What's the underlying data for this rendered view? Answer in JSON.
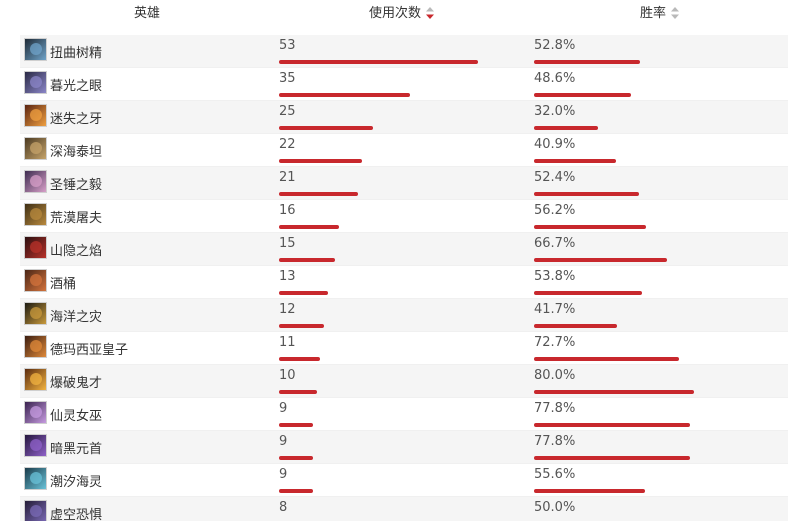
{
  "header": {
    "hero": "英雄",
    "usage": "使用次数",
    "winrate": "胜率"
  },
  "colors": {
    "bar": "#c8282d",
    "sort_active": "#c8282d",
    "sort_inactive": "#b9b9b9"
  },
  "heroes": [
    {
      "name": "扭曲树精",
      "usage": "53",
      "winrate": "52.8%",
      "winrate_value": 52.8,
      "avatar_colors": [
        "#1f2a36",
        "#6fa3c9"
      ]
    },
    {
      "name": "暮光之眼",
      "usage": "35",
      "winrate": "48.6%",
      "winrate_value": 48.6,
      "avatar_colors": [
        "#2a2a45",
        "#8b86c8"
      ]
    },
    {
      "name": "迷失之牙",
      "usage": "25",
      "winrate": "32.0%",
      "winrate_value": 32.0,
      "avatar_colors": [
        "#5a2310",
        "#f0a040"
      ]
    },
    {
      "name": "深海泰坦",
      "usage": "22",
      "winrate": "40.9%",
      "winrate_value": 40.9,
      "avatar_colors": [
        "#4b3a22",
        "#c5a36a"
      ]
    },
    {
      "name": "圣锤之毅",
      "usage": "21",
      "winrate": "52.4%",
      "winrate_value": 52.4,
      "avatar_colors": [
        "#3d2c4f",
        "#d79fc8"
      ]
    },
    {
      "name": "荒漠屠夫",
      "usage": "16",
      "winrate": "56.2%",
      "winrate_value": 56.2,
      "avatar_colors": [
        "#3f3015",
        "#b8893e"
      ]
    },
    {
      "name": "山隐之焰",
      "usage": "15",
      "winrate": "66.7%",
      "winrate_value": 66.7,
      "avatar_colors": [
        "#2b0f10",
        "#b8322a"
      ]
    },
    {
      "name": "酒桶",
      "usage": "13",
      "winrate": "53.8%",
      "winrate_value": 53.8,
      "avatar_colors": [
        "#4a2616",
        "#d3733c"
      ]
    },
    {
      "name": "海洋之灾",
      "usage": "12",
      "winrate": "41.7%",
      "winrate_value": 41.7,
      "avatar_colors": [
        "#1c1a12",
        "#c99a3c"
      ]
    },
    {
      "name": "德玛西亚皇子",
      "usage": "11",
      "winrate": "72.7%",
      "winrate_value": 72.7,
      "avatar_colors": [
        "#3b1d10",
        "#e08a3a"
      ]
    },
    {
      "name": "爆破鬼才",
      "usage": "10",
      "winrate": "80.0%",
      "winrate_value": 80.0,
      "avatar_colors": [
        "#5a2a0e",
        "#f2b340"
      ]
    },
    {
      "name": "仙灵女巫",
      "usage": "9",
      "winrate": "77.8%",
      "winrate_value": 77.8,
      "avatar_colors": [
        "#3a2350",
        "#c69be0"
      ]
    },
    {
      "name": "暗黑元首",
      "usage": "9",
      "winrate": "77.8%",
      "winrate_value": 77.8,
      "avatar_colors": [
        "#24163d",
        "#8f62c9"
      ]
    },
    {
      "name": "潮汐海灵",
      "usage": "9",
      "winrate": "55.6%",
      "winrate_value": 55.6,
      "avatar_colors": [
        "#1a3b4a",
        "#6ac2d8"
      ]
    },
    {
      "name": "虚空恐惧",
      "usage": "8",
      "winrate": "50.0%",
      "winrate_value": 50.0,
      "avatar_colors": [
        "#241c36",
        "#7a6ab5"
      ]
    }
  ]
}
